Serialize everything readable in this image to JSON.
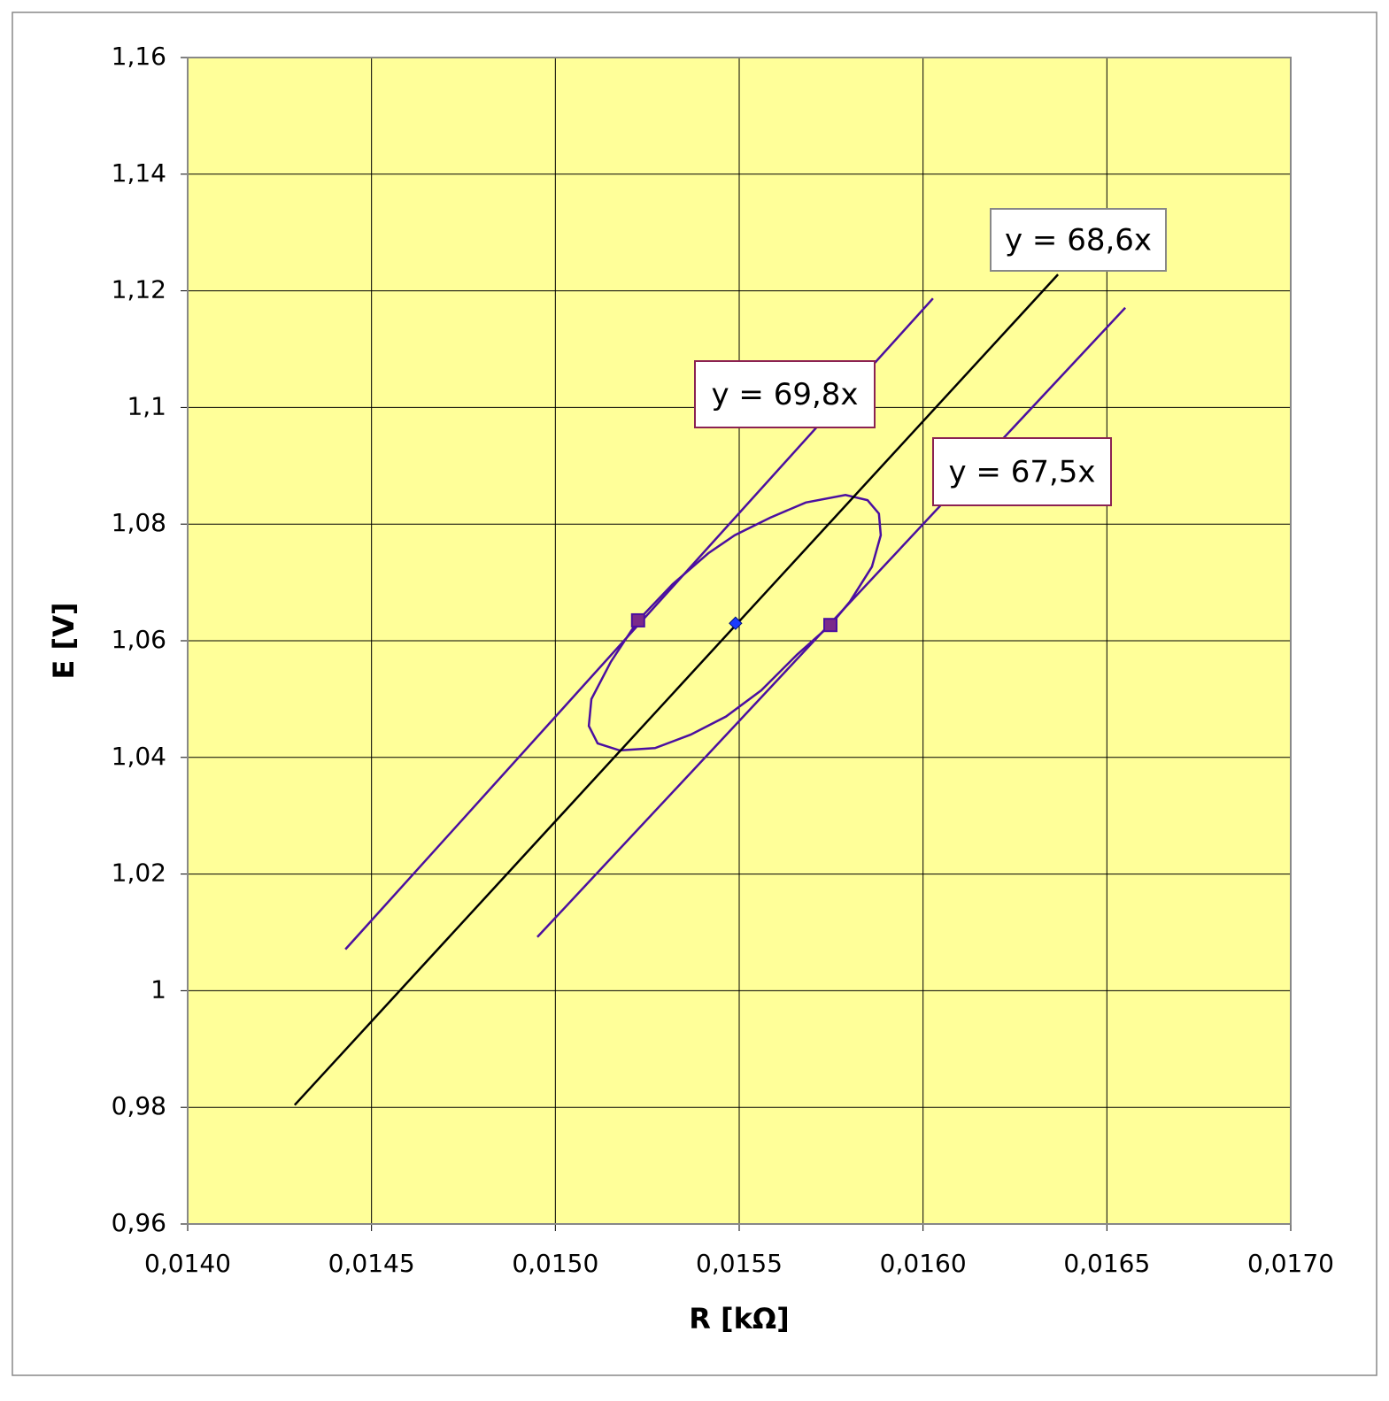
{
  "chart_data": {
    "type": "scatter",
    "x_label": "R  [kΩ]",
    "y_label": "E  [V]",
    "xlim": [
      0.014,
      0.017
    ],
    "xticks": [
      {
        "value": 0.014,
        "label": "0,0140"
      },
      {
        "value": 0.0145,
        "label": "0,0145"
      },
      {
        "value": 0.015,
        "label": "0,0150"
      },
      {
        "value": 0.0155,
        "label": "0,0155"
      },
      {
        "value": 0.016,
        "label": "0,0160"
      },
      {
        "value": 0.0165,
        "label": "0,0165"
      },
      {
        "value": 0.017,
        "label": "0,0170"
      }
    ],
    "ylim": [
      0.96,
      1.16
    ],
    "yticks": [
      {
        "value": 0.96,
        "label": "0,96"
      },
      {
        "value": 0.98,
        "label": "0,98"
      },
      1,
      {
        "value": 1.02,
        "label": "1,02"
      },
      {
        "value": 1.04,
        "label": "1,04"
      },
      {
        "value": 1.06,
        "label": "1,06"
      },
      {
        "value": 1.08,
        "label": "1,08"
      },
      {
        "value": 1.1,
        "label": "1,1"
      },
      {
        "value": 1.12,
        "label": "1,12"
      },
      {
        "value": 1.14,
        "label": "1,14"
      },
      {
        "value": 1.16,
        "label": "1,16"
      }
    ],
    "grid": true,
    "background": "#ffff99",
    "series": [
      {
        "color": "#4b0fa0",
        "line": true,
        "x": [
          0.015225,
          0.015319,
          0.015416,
          0.015488,
          0.015584,
          0.015681,
          0.015789,
          0.015849,
          0.01588,
          0.015885,
          0.015861,
          0.015801,
          0.015748,
          0.015657,
          0.01556,
          0.015464,
          0.015368,
          0.015271,
          0.015175,
          0.015115,
          0.015091,
          0.015098,
          0.015151,
          0.015225
        ],
        "values": [
          1.0635,
          1.0697,
          1.075,
          1.0781,
          1.0811,
          1.0837,
          1.085,
          1.0841,
          1.0818,
          1.0781,
          1.0727,
          1.0667,
          1.0627,
          1.0576,
          1.0515,
          1.047,
          1.0439,
          1.0416,
          1.0412,
          1.0424,
          1.0454,
          1.05,
          1.0564,
          1.0635
        ]
      },
      {
        "name": "y = 68,6x",
        "color": "#000000",
        "line": true,
        "x": [
          0.014291,
          0.016367
        ],
        "values": [
          0.9804,
          1.1228
        ]
      },
      {
        "name": "y = 69,8x",
        "color": "#4b0fa0",
        "line": true,
        "x": [
          0.014429,
          0.016027
        ],
        "values": [
          1.0071,
          1.1187
        ]
      },
      {
        "name": "y = 67,5x",
        "color": "#4b0fa0",
        "line": true,
        "x": [
          0.014951,
          0.01655
        ],
        "values": [
          1.0092,
          1.1171
        ]
      },
      {
        "color": "#7b2a8a",
        "marker": "square",
        "x": [
          0.015225,
          0.015748
        ],
        "values": [
          1.0635,
          1.0627
        ]
      },
      {
        "color": "#1a3cff",
        "marker": "diamond",
        "x": [
          0.01549
        ],
        "values": [
          1.063
        ]
      }
    ]
  }
}
